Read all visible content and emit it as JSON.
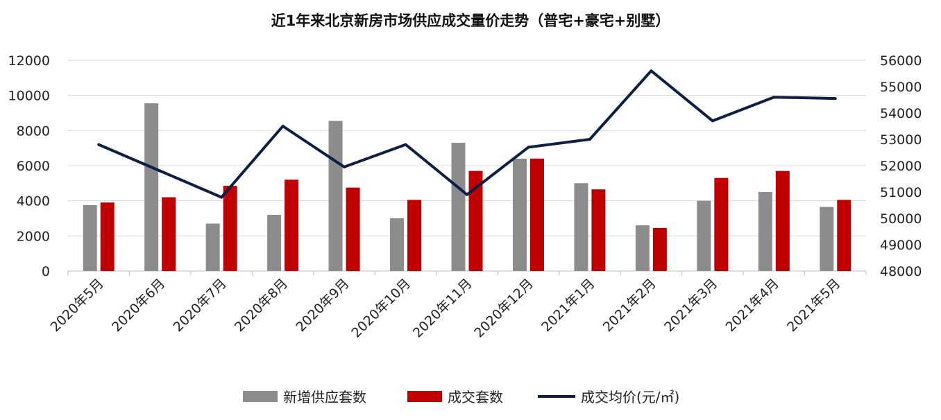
{
  "chart_data": {
    "type": "bar",
    "title": "近1年来北京新房市场供应成交量价走势（普宅+豪宅+别墅）",
    "categories": [
      "2020年5月",
      "2020年6月",
      "2020年7月",
      "2020年8月",
      "2020年9月",
      "2020年10月",
      "2020年11月",
      "2020年12月",
      "2021年1月",
      "2021年2月",
      "2021年3月",
      "2021年4月",
      "2021年5月"
    ],
    "series": [
      {
        "name": "新增供应套数",
        "type": "bar",
        "axis": "left",
        "color": "#8c8c8c",
        "values": [
          3750,
          9550,
          2700,
          3200,
          8550,
          3000,
          7300,
          6400,
          5000,
          2600,
          4000,
          4500,
          3650
        ]
      },
      {
        "name": "成交套数",
        "type": "bar",
        "axis": "left",
        "color": "#c00000",
        "values": [
          3900,
          4200,
          4850,
          5200,
          4750,
          4050,
          5700,
          6400,
          4650,
          2450,
          5300,
          5700,
          4050
        ]
      },
      {
        "name": "成交均价(元/㎡)",
        "type": "line",
        "axis": "right",
        "color": "#0d1f45",
        "values": [
          52800,
          51800,
          50800,
          53500,
          51950,
          52800,
          50900,
          52700,
          53000,
          55600,
          53700,
          54600,
          54550
        ]
      }
    ],
    "y_left": {
      "min": 0,
      "max": 12000,
      "ticks": [
        "0",
        "2000",
        "4000",
        "6000",
        "8000",
        "10000",
        "12000"
      ]
    },
    "y_right": {
      "min": 48000,
      "max": 56000,
      "ticks": [
        "48000",
        "49000",
        "50000",
        "51000",
        "52000",
        "53000",
        "54000",
        "55000",
        "56000"
      ]
    },
    "grid": true,
    "legend_position": "bottom"
  }
}
